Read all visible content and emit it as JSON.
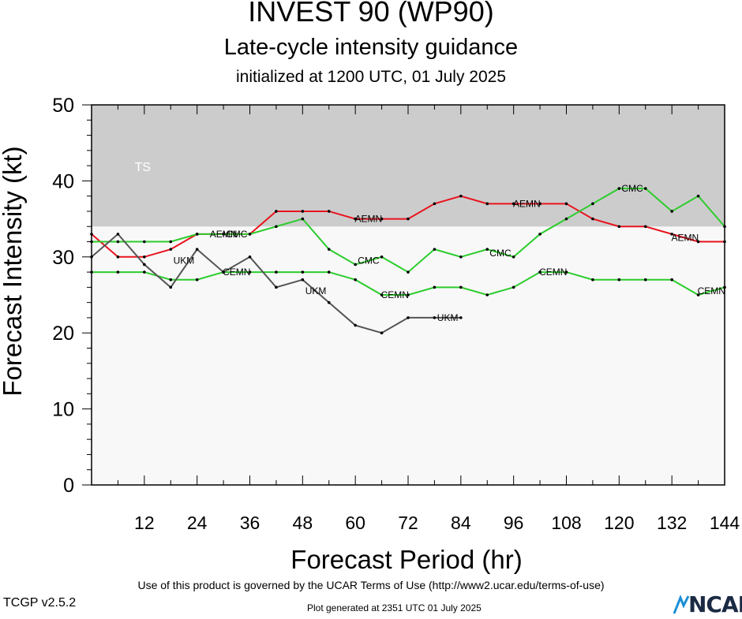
{
  "header": {
    "title": "INVEST 90 (WP90)",
    "subtitle": "Late-cycle intensity guidance",
    "init": "initialized at 1200 UTC, 01 July 2025"
  },
  "footer": {
    "terms": "Use of this product is governed by the UCAR Terms of Use (http://www2.ucar.edu/terms-of-use)",
    "version": "TCGP v2.5.2",
    "generated": "Plot generated at 2351 UTC   01 July 2025",
    "logo": "NCAR"
  },
  "chart_data": {
    "type": "line",
    "xlabel": "Forecast Period (hr)",
    "ylabel": "Forecast Intensity (kt)",
    "xlim": [
      0,
      144
    ],
    "ylim": [
      0,
      50
    ],
    "xticks": [
      12,
      24,
      36,
      48,
      60,
      72,
      84,
      96,
      108,
      120,
      132,
      144
    ],
    "yticks": [
      0,
      10,
      20,
      30,
      40,
      50
    ],
    "bands": [
      {
        "label": "TS",
        "from": 34,
        "to": 50,
        "color": "#cccccc"
      }
    ],
    "plot_background": "#f8f8f8",
    "series": [
      {
        "name": "AEMN",
        "color": "#e8141e",
        "x": [
          0,
          6,
          12,
          18,
          24,
          30,
          36,
          42,
          48,
          54,
          60,
          66,
          72,
          78,
          84,
          90,
          96,
          102,
          108,
          114,
          120,
          126,
          132,
          138,
          144
        ],
        "y": [
          33,
          30,
          30,
          31,
          33,
          33,
          33,
          36,
          36,
          36,
          35,
          35,
          35,
          37,
          38,
          37,
          37,
          37,
          37,
          35,
          34,
          34,
          33,
          32,
          32
        ]
      },
      {
        "name": "CMC",
        "color": "#2ccc2c",
        "x": [
          0,
          6,
          12,
          18,
          24,
          30,
          36,
          42,
          48,
          54,
          60,
          66,
          72,
          78,
          84,
          90,
          96,
          102,
          108,
          114,
          120,
          126,
          132,
          138,
          144
        ],
        "y": [
          32,
          32,
          32,
          32,
          33,
          33,
          33,
          34,
          35,
          31,
          29,
          30,
          28,
          31,
          30,
          31,
          30,
          33,
          35,
          37,
          39,
          39,
          36,
          38,
          34
        ]
      },
      {
        "name": "CEMN",
        "color": "#2ccc2c",
        "x": [
          0,
          6,
          12,
          18,
          24,
          30,
          36,
          42,
          48,
          54,
          60,
          66,
          72,
          78,
          84,
          90,
          96,
          102,
          108,
          114,
          120,
          126,
          132,
          138,
          144
        ],
        "y": [
          28,
          28,
          28,
          27,
          27,
          28,
          28,
          28,
          28,
          28,
          27,
          25,
          25,
          26,
          26,
          25,
          26,
          28,
          28,
          27,
          27,
          27,
          27,
          25,
          26
        ]
      },
      {
        "name": "UKM",
        "color": "#555555",
        "x": [
          0,
          6,
          12,
          18,
          24,
          30,
          36,
          42,
          48,
          54,
          60,
          66,
          72,
          78,
          84
        ],
        "y": [
          30,
          33,
          29,
          26,
          31,
          28,
          30,
          26,
          27,
          24,
          21,
          20,
          22,
          22,
          22
        ]
      }
    ],
    "line_labels": [
      {
        "series": "AEMN",
        "text": "AEMN",
        "x": 30,
        "y": 33
      },
      {
        "series": "AEMN",
        "text": "AEMN",
        "x": 63,
        "y": 35
      },
      {
        "series": "AEMN",
        "text": "AEMN",
        "x": 99,
        "y": 37
      },
      {
        "series": "AEMN",
        "text": "AEMN",
        "x": 135,
        "y": 32.5
      },
      {
        "series": "CMC",
        "text": "CMC",
        "x": 33,
        "y": 33
      },
      {
        "series": "CMC",
        "text": "CMC",
        "x": 63,
        "y": 29.5
      },
      {
        "series": "CMC",
        "text": "CMC",
        "x": 93,
        "y": 30.5
      },
      {
        "series": "CMC",
        "text": "CMC",
        "x": 123,
        "y": 39
      },
      {
        "series": "CEMN",
        "text": "CEMN",
        "x": 33,
        "y": 28
      },
      {
        "series": "CEMN",
        "text": "CEMN",
        "x": 69,
        "y": 25
      },
      {
        "series": "CEMN",
        "text": "CEMN",
        "x": 105,
        "y": 28
      },
      {
        "series": "CEMN",
        "text": "CEMN",
        "x": 141,
        "y": 25.5
      },
      {
        "series": "UKM",
        "text": "UKM",
        "x": 21,
        "y": 29.5
      },
      {
        "series": "UKM",
        "text": "UKM",
        "x": 51,
        "y": 25.5
      },
      {
        "series": "UKM",
        "text": "UKM",
        "x": 81,
        "y": 22
      }
    ]
  }
}
